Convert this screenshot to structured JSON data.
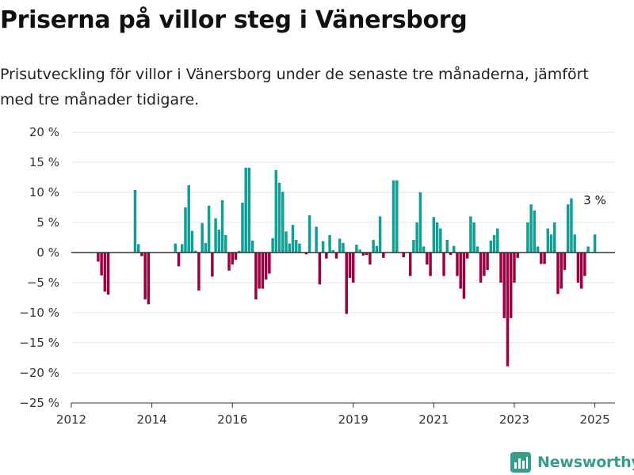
{
  "page": {
    "title": "Priserna på villor steg i Vänersborg",
    "subtitle": "Prisutveckling för villor i Vänersborg under de senaste tre månaderna, jämfört med tre månader tidigare."
  },
  "brand": {
    "name": "Newsworthy",
    "icon": "newsworthy-bar-chart-icon",
    "color": "#3a9c8c"
  },
  "colors": {
    "positive": "#0f9f95",
    "negative": "#9b0041",
    "grid": "#e4e4e4",
    "zero_line": "#333333"
  },
  "chart_data": {
    "type": "bar",
    "title": "Priserna på villor steg i Vänersborg",
    "subtitle": "Prisutveckling för villor i Vänersborg under de senaste tre månaderna, jämfört med tre månader tidigare.",
    "xlabel": "",
    "ylabel": "",
    "y_ticks": [
      20,
      15,
      10,
      5,
      0,
      -5,
      -10,
      -15,
      -20,
      -25
    ],
    "y_tick_labels": [
      "20 %",
      "15 %",
      "10 %",
      "5 %",
      "0 %",
      "−5 %",
      "−10 %",
      "−15 %",
      "−20 %",
      "−25 %"
    ],
    "ylim": [
      -25,
      20
    ],
    "x_ticks": [
      "2012-01",
      "2014-01",
      "2016-01",
      "2019-01",
      "2021-01",
      "2023-01",
      "2025-01"
    ],
    "x_tick_labels": [
      "2012",
      "2014",
      "2016",
      "2019",
      "2021",
      "2023",
      "2025"
    ],
    "xlim": [
      "2012-01",
      "2025-07"
    ],
    "grid": true,
    "annotation": {
      "date": "2025-01",
      "value": 3,
      "label": "3 %"
    },
    "points": [
      {
        "date": "2012-09",
        "value": -1.5
      },
      {
        "date": "2012-10",
        "value": -3.8
      },
      {
        "date": "2012-11",
        "value": -6.5
      },
      {
        "date": "2012-12",
        "value": -7.0
      },
      {
        "date": "2013-08",
        "value": 10.4
      },
      {
        "date": "2013-09",
        "value": 1.4
      },
      {
        "date": "2013-10",
        "value": -0.6
      },
      {
        "date": "2013-11",
        "value": -7.8
      },
      {
        "date": "2013-12",
        "value": -8.6
      },
      {
        "date": "2014-08",
        "value": 1.5
      },
      {
        "date": "2014-09",
        "value": -2.3
      },
      {
        "date": "2014-10",
        "value": 1.4
      },
      {
        "date": "2014-11",
        "value": 7.5
      },
      {
        "date": "2014-12",
        "value": 11.2
      },
      {
        "date": "2015-01",
        "value": 3.6
      },
      {
        "date": "2015-02",
        "value": 0.3
      },
      {
        "date": "2015-03",
        "value": -6.3
      },
      {
        "date": "2015-04",
        "value": 4.9
      },
      {
        "date": "2015-05",
        "value": 1.6
      },
      {
        "date": "2015-06",
        "value": 7.8
      },
      {
        "date": "2015-07",
        "value": -4.0
      },
      {
        "date": "2015-08",
        "value": 5.7
      },
      {
        "date": "2015-09",
        "value": 3.8
      },
      {
        "date": "2015-10",
        "value": 8.7
      },
      {
        "date": "2015-11",
        "value": 2.9
      },
      {
        "date": "2015-12",
        "value": -3.0
      },
      {
        "date": "2016-01",
        "value": -2.0
      },
      {
        "date": "2016-02",
        "value": -1.2
      },
      {
        "date": "2016-03",
        "value": 0.3
      },
      {
        "date": "2016-04",
        "value": 8.3
      },
      {
        "date": "2016-05",
        "value": 14.1
      },
      {
        "date": "2016-06",
        "value": 14.1
      },
      {
        "date": "2016-07",
        "value": 2.0
      },
      {
        "date": "2016-08",
        "value": -7.8
      },
      {
        "date": "2016-09",
        "value": -6.0
      },
      {
        "date": "2016-10",
        "value": -6.0
      },
      {
        "date": "2016-11",
        "value": -4.5
      },
      {
        "date": "2016-12",
        "value": -3.5
      },
      {
        "date": "2017-01",
        "value": 2.4
      },
      {
        "date": "2017-02",
        "value": 13.7
      },
      {
        "date": "2017-03",
        "value": 11.6
      },
      {
        "date": "2017-04",
        "value": 10.1
      },
      {
        "date": "2017-05",
        "value": 3.5
      },
      {
        "date": "2017-06",
        "value": 1.5
      },
      {
        "date": "2017-07",
        "value": 4.6
      },
      {
        "date": "2017-08",
        "value": 2.1
      },
      {
        "date": "2017-09",
        "value": 1.5
      },
      {
        "date": "2017-11",
        "value": -0.3
      },
      {
        "date": "2017-12",
        "value": 6.2
      },
      {
        "date": "2018-02",
        "value": 4.3
      },
      {
        "date": "2018-03",
        "value": -5.3
      },
      {
        "date": "2018-04",
        "value": 1.9
      },
      {
        "date": "2018-05",
        "value": -1.0
      },
      {
        "date": "2018-06",
        "value": 2.9
      },
      {
        "date": "2018-07",
        "value": 0.4
      },
      {
        "date": "2018-08",
        "value": -1.0
      },
      {
        "date": "2018-09",
        "value": 2.3
      },
      {
        "date": "2018-10",
        "value": 1.6
      },
      {
        "date": "2018-11",
        "value": -10.2
      },
      {
        "date": "2018-12",
        "value": -4.2
      },
      {
        "date": "2019-01",
        "value": -5.0
      },
      {
        "date": "2019-02",
        "value": 1.3
      },
      {
        "date": "2019-03",
        "value": 0.5
      },
      {
        "date": "2019-04",
        "value": -0.5
      },
      {
        "date": "2019-05",
        "value": -0.4
      },
      {
        "date": "2019-06",
        "value": -2.0
      },
      {
        "date": "2019-07",
        "value": 2.1
      },
      {
        "date": "2019-08",
        "value": 1.1
      },
      {
        "date": "2019-09",
        "value": 6.0
      },
      {
        "date": "2019-10",
        "value": -0.9
      },
      {
        "date": "2020-01",
        "value": 12.0
      },
      {
        "date": "2020-02",
        "value": 12.0
      },
      {
        "date": "2020-04",
        "value": -0.8
      },
      {
        "date": "2020-06",
        "value": -3.9
      },
      {
        "date": "2020-07",
        "value": 2.1
      },
      {
        "date": "2020-08",
        "value": 5.0
      },
      {
        "date": "2020-09",
        "value": 10.0
      },
      {
        "date": "2020-10",
        "value": 1.0
      },
      {
        "date": "2020-11",
        "value": -2.0
      },
      {
        "date": "2020-12",
        "value": -3.9
      },
      {
        "date": "2021-01",
        "value": 5.9
      },
      {
        "date": "2021-02",
        "value": 5.0
      },
      {
        "date": "2021-03",
        "value": 4.0
      },
      {
        "date": "2021-04",
        "value": -3.9
      },
      {
        "date": "2021-05",
        "value": 2.1
      },
      {
        "date": "2021-06",
        "value": -0.4
      },
      {
        "date": "2021-07",
        "value": 1.1
      },
      {
        "date": "2021-08",
        "value": -3.9
      },
      {
        "date": "2021-09",
        "value": -6.0
      },
      {
        "date": "2021-10",
        "value": -7.7
      },
      {
        "date": "2021-11",
        "value": -1.0
      },
      {
        "date": "2021-12",
        "value": 6.0
      },
      {
        "date": "2022-01",
        "value": 5.0
      },
      {
        "date": "2022-02",
        "value": 1.0
      },
      {
        "date": "2022-03",
        "value": -5.0
      },
      {
        "date": "2022-04",
        "value": -3.9
      },
      {
        "date": "2022-05",
        "value": -2.9
      },
      {
        "date": "2022-06",
        "value": 2.0
      },
      {
        "date": "2022-07",
        "value": 2.9
      },
      {
        "date": "2022-08",
        "value": 4.0
      },
      {
        "date": "2022-09",
        "value": -5.0
      },
      {
        "date": "2022-10",
        "value": -10.9
      },
      {
        "date": "2022-11",
        "value": -18.9
      },
      {
        "date": "2022-12",
        "value": -10.9
      },
      {
        "date": "2023-01",
        "value": -5.0
      },
      {
        "date": "2023-02",
        "value": -0.9
      },
      {
        "date": "2023-05",
        "value": 5.0
      },
      {
        "date": "2023-06",
        "value": 8.0
      },
      {
        "date": "2023-07",
        "value": 7.0
      },
      {
        "date": "2023-08",
        "value": 1.0
      },
      {
        "date": "2023-09",
        "value": -1.9
      },
      {
        "date": "2023-10",
        "value": -1.9
      },
      {
        "date": "2023-11",
        "value": 4.0
      },
      {
        "date": "2023-12",
        "value": 3.0
      },
      {
        "date": "2024-01",
        "value": 5.0
      },
      {
        "date": "2024-02",
        "value": -6.9
      },
      {
        "date": "2024-03",
        "value": -6.0
      },
      {
        "date": "2024-04",
        "value": -2.9
      },
      {
        "date": "2024-05",
        "value": 8.0
      },
      {
        "date": "2024-06",
        "value": 9.0
      },
      {
        "date": "2024-07",
        "value": 3.0
      },
      {
        "date": "2024-08",
        "value": -5.0
      },
      {
        "date": "2024-09",
        "value": -6.0
      },
      {
        "date": "2024-10",
        "value": -3.9
      },
      {
        "date": "2024-11",
        "value": 1.0
      },
      {
        "date": "2025-01",
        "value": 3.0
      }
    ]
  }
}
